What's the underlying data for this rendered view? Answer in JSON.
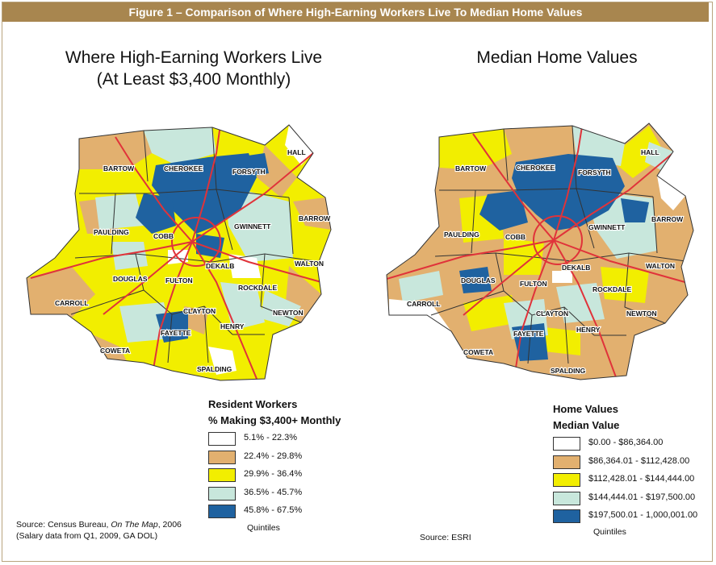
{
  "header": {
    "title": "Figure 1 – Comparison of Where High-Earning Workers Live To Median Home Values"
  },
  "left_map": {
    "title_line1": "Where High-Earning Workers Live",
    "title_line2": "(At Least $3,400 Monthly)",
    "legend": {
      "title": "Resident Workers",
      "subtitle": "% Making $3,400+ Monthly",
      "items": [
        {
          "label": "5.1% - 22.3%",
          "color": "#ffffff"
        },
        {
          "label": "22.4% - 29.8%",
          "color": "#e2b06f"
        },
        {
          "label": "29.9% - 36.4%",
          "color": "#f2ee00"
        },
        {
          "label": "36.5% - 45.7%",
          "color": "#c8e7dc"
        },
        {
          "label": "45.8% - 67.5%",
          "color": "#1f62a0"
        }
      ],
      "footer": "Quintiles"
    },
    "source_prefix": "Source: Census Bureau, ",
    "source_italic": "On The Map",
    "source_suffix": ", 2006",
    "source_line2": "(Salary data from Q1, 2009, GA DOL)"
  },
  "right_map": {
    "title": "Median Home Values",
    "legend": {
      "title": "Home Values",
      "subtitle": "Median Value",
      "items": [
        {
          "label": "$0.00 - $86,364.00",
          "color": "#ffffff"
        },
        {
          "label": "$86,364.01 - $112,428.00",
          "color": "#e2b06f"
        },
        {
          "label": "$112,428.01 - $144,444.00",
          "color": "#f2ee00"
        },
        {
          "label": "$144,444.01 - $197,500.00",
          "color": "#c8e7dc"
        },
        {
          "label": "$197,500.01 - 1,000,001.00",
          "color": "#1f62a0"
        }
      ],
      "footer": "Quintiles"
    },
    "source": "Source: ESRI"
  },
  "counties": [
    "BARTOW",
    "CHEROKEE",
    "FORSYTH",
    "HALL",
    "BARROW",
    "GWINNETT",
    "PAULDING",
    "COBB",
    "WALTON",
    "DEKALB",
    "DOUGLAS",
    "FULTON",
    "ROCKDALE",
    "CARROLL",
    "CLAYTON",
    "NEWTON",
    "FAYETTE",
    "HENRY",
    "COWETA",
    "SPALDING"
  ],
  "colors": {
    "banner": "#a8864f",
    "highways": "#e0333a",
    "county_borders": "#333333"
  }
}
